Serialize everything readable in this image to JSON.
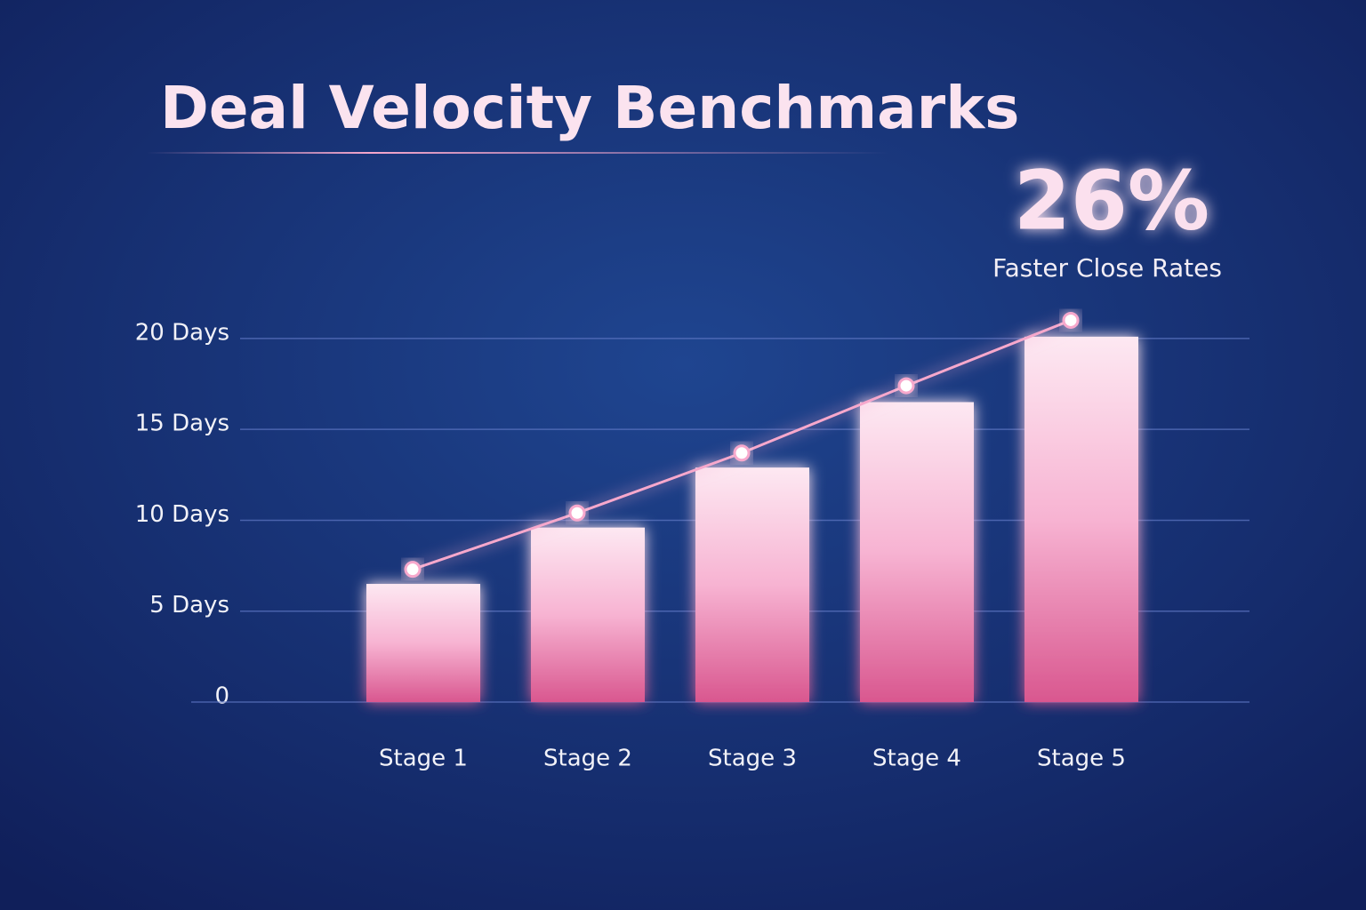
{
  "chart_data": {
    "type": "bar",
    "title": "Deal Velocity Benchmarks",
    "callout": {
      "value": 26,
      "value_label": "26%",
      "text": "Faster Close Rates"
    },
    "categories": [
      "Stage 1",
      "Stage 2",
      "Stage 3",
      "Stage 4",
      "Stage 5"
    ],
    "series": [
      {
        "type": "bar",
        "color": "#f48fbf",
        "values": [
          6.5,
          9.6,
          12.9,
          16.5,
          20.1
        ]
      },
      {
        "type": "line",
        "color": "#f7a8cc",
        "values": [
          7.3,
          10.4,
          13.7,
          17.4,
          21
        ]
      }
    ],
    "ylim": [
      0,
      22
    ],
    "yticks": [
      {
        "value": 0,
        "label": "0"
      },
      {
        "value": 5,
        "label": "5 Days"
      },
      {
        "value": 10,
        "label": "10 Days"
      },
      {
        "value": 15,
        "label": "15 Days"
      },
      {
        "value": 20,
        "label": "20 Days"
      }
    ],
    "grid": true
  }
}
